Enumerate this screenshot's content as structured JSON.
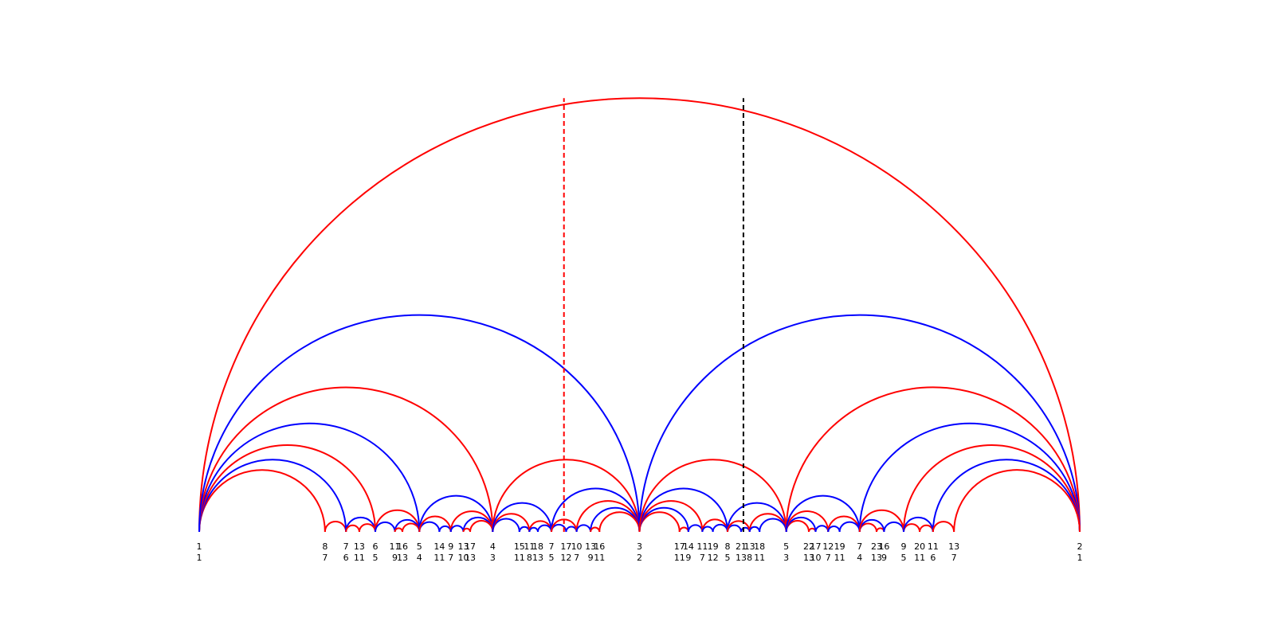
{
  "chart_data": {
    "type": "farey",
    "xlim": [
      1,
      2
    ],
    "arc_colors": [
      "red",
      "blue"
    ],
    "fractions": [
      {
        "num": 1,
        "den": 1
      },
      {
        "num": 8,
        "den": 7
      },
      {
        "num": 7,
        "den": 6
      },
      {
        "num": 13,
        "den": 11
      },
      {
        "num": 6,
        "den": 5
      },
      {
        "num": 11,
        "den": 9
      },
      {
        "num": 16,
        "den": 13
      },
      {
        "num": 5,
        "den": 4
      },
      {
        "num": 14,
        "den": 11
      },
      {
        "num": 9,
        "den": 7
      },
      {
        "num": 13,
        "den": 10
      },
      {
        "num": 17,
        "den": 13
      },
      {
        "num": 4,
        "den": 3
      },
      {
        "num": 15,
        "den": 11
      },
      {
        "num": 11,
        "den": 8
      },
      {
        "num": 18,
        "den": 13
      },
      {
        "num": 7,
        "den": 5
      },
      {
        "num": 17,
        "den": 12
      },
      {
        "num": 10,
        "den": 7
      },
      {
        "num": 13,
        "den": 9
      },
      {
        "num": 16,
        "den": 11
      },
      {
        "num": 3,
        "den": 2
      },
      {
        "num": 17,
        "den": 11
      },
      {
        "num": 14,
        "den": 9
      },
      {
        "num": 11,
        "den": 7
      },
      {
        "num": 19,
        "den": 12
      },
      {
        "num": 8,
        "den": 5
      },
      {
        "num": 21,
        "den": 13
      },
      {
        "num": 13,
        "den": 8
      },
      {
        "num": 18,
        "den": 11
      },
      {
        "num": 5,
        "den": 3
      },
      {
        "num": 22,
        "den": 13
      },
      {
        "num": 17,
        "den": 10
      },
      {
        "num": 12,
        "den": 7
      },
      {
        "num": 19,
        "den": 11
      },
      {
        "num": 7,
        "den": 4
      },
      {
        "num": 23,
        "den": 13
      },
      {
        "num": 16,
        "den": 9
      },
      {
        "num": 9,
        "den": 5
      },
      {
        "num": 20,
        "den": 11
      },
      {
        "num": 11,
        "den": 6
      },
      {
        "num": 13,
        "den": 7
      },
      {
        "num": 2,
        "den": 1
      }
    ],
    "vertical_lines": [
      {
        "x": 1.41421,
        "color": "red"
      },
      {
        "x": 1.61803,
        "color": "black"
      }
    ]
  }
}
